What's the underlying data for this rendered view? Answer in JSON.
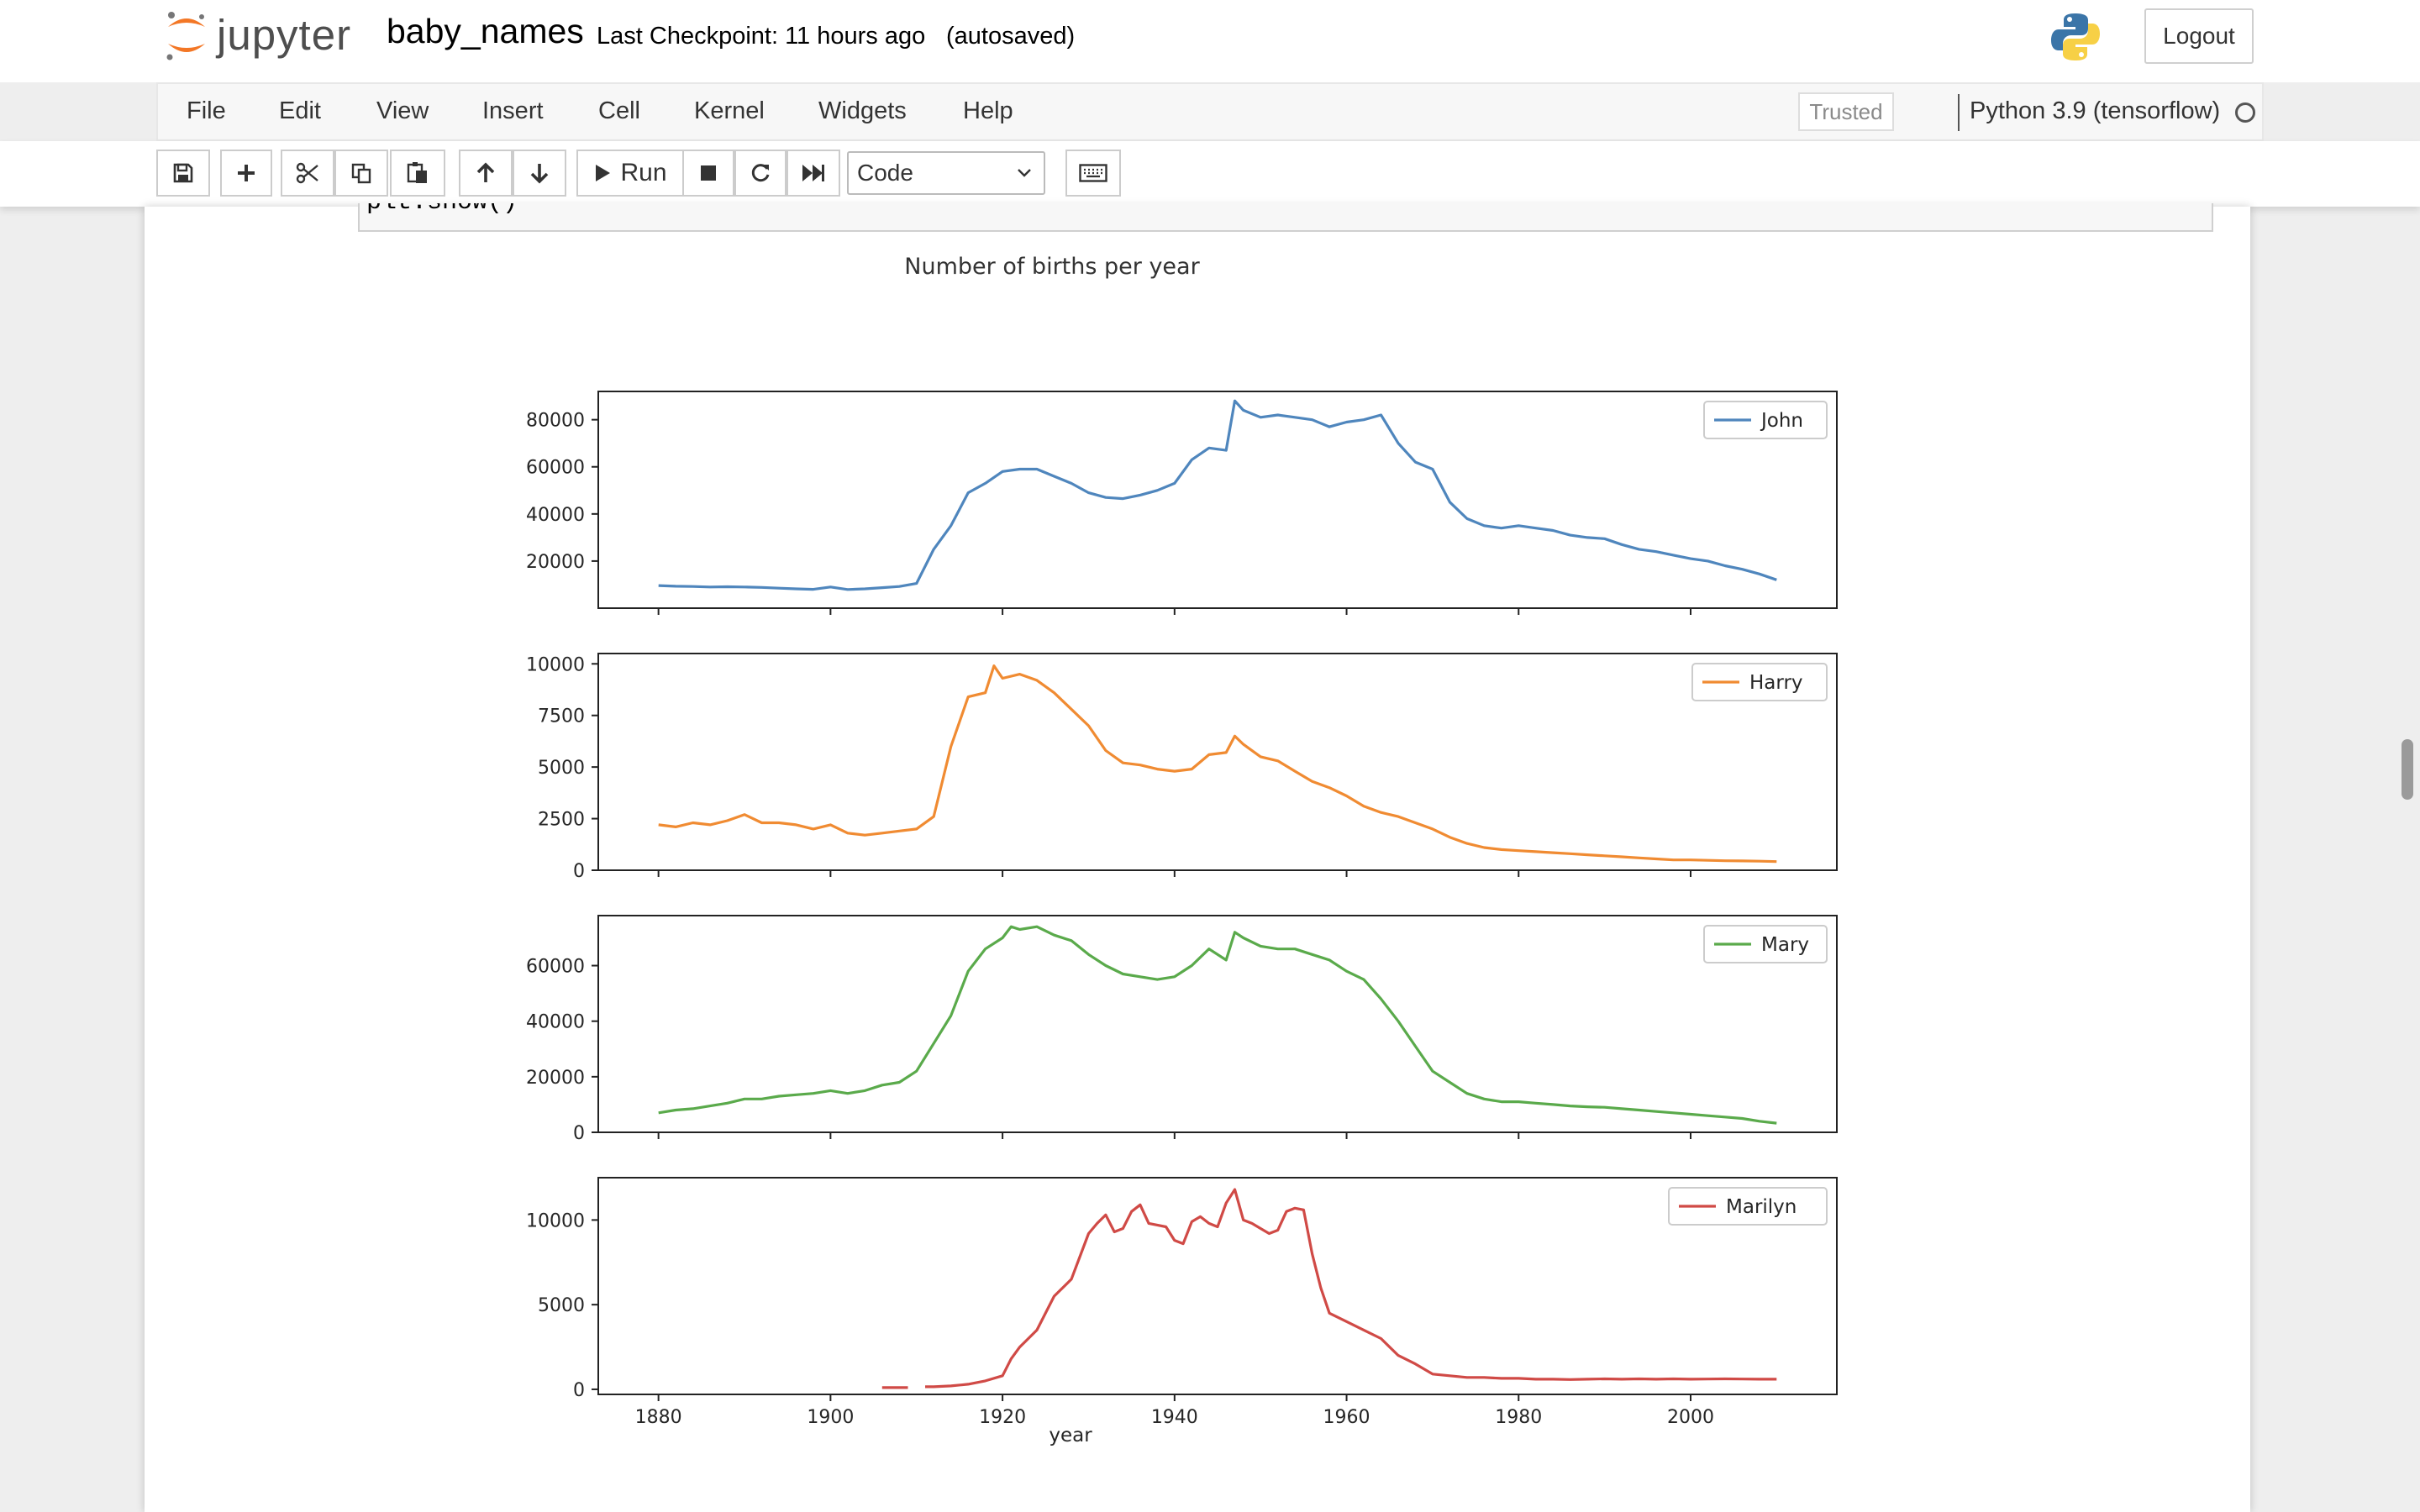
{
  "header": {
    "logo_text": "jupyter",
    "notebook_name": "baby_names",
    "checkpoint": "Last Checkpoint: 11 hours ago",
    "autosave": "(autosaved)",
    "logout_label": "Logout"
  },
  "menubar": {
    "items": [
      "File",
      "Edit",
      "View",
      "Insert",
      "Cell",
      "Kernel",
      "Widgets",
      "Help"
    ],
    "trusted_label": "Trusted",
    "kernel_name": "Python 3.9 (tensorflow)"
  },
  "toolbar": {
    "run_label": "Run",
    "cell_type": "Code",
    "icons": [
      "save-icon",
      "plus-icon",
      "cut-icon",
      "copy-icon",
      "paste-icon",
      "arrow-up-icon",
      "arrow-down-icon",
      "run-icon",
      "stop-icon",
      "restart-icon",
      "fast-forward-icon",
      "keyboard-icon"
    ]
  },
  "cell": {
    "code_tail": "plt.show()"
  },
  "colors": {
    "John": "#4f86bd",
    "Harry": "#f08b32",
    "Mary": "#5aaa4b",
    "Marilyn": "#d04a46"
  },
  "chart_data": {
    "type": "line",
    "title": "Number of births per year",
    "xlabel": "year",
    "xlim": [
      1873,
      2017
    ],
    "xticks": [
      1880,
      1900,
      1920,
      1940,
      1960,
      1980,
      2000
    ],
    "panels": [
      {
        "name": "John",
        "ylim": [
          0,
          92000
        ],
        "yticks": [
          20000,
          40000,
          60000,
          80000
        ],
        "x": [
          1880,
          1882,
          1884,
          1886,
          1888,
          1890,
          1892,
          1894,
          1896,
          1898,
          1900,
          1902,
          1904,
          1906,
          1908,
          1910,
          1912,
          1914,
          1916,
          1918,
          1920,
          1922,
          1924,
          1926,
          1928,
          1930,
          1932,
          1934,
          1936,
          1938,
          1940,
          1942,
          1944,
          1946,
          1947,
          1948,
          1950,
          1952,
          1954,
          1956,
          1958,
          1960,
          1962,
          1964,
          1966,
          1968,
          1970,
          1972,
          1974,
          1976,
          1978,
          1980,
          1982,
          1984,
          1986,
          1988,
          1990,
          1992,
          1994,
          1996,
          1998,
          2000,
          2002,
          2004,
          2006,
          2008,
          2010
        ],
        "values": [
          9600,
          9300,
          9200,
          9000,
          9100,
          9000,
          8800,
          8500,
          8200,
          8000,
          9000,
          7900,
          8200,
          8700,
          9200,
          10500,
          25000,
          35000,
          49000,
          53000,
          58000,
          59000,
          59000,
          56000,
          53000,
          49000,
          47000,
          46500,
          48000,
          50000,
          53000,
          63000,
          68000,
          67000,
          88000,
          84000,
          81000,
          82000,
          81000,
          80000,
          77000,
          79000,
          80000,
          82000,
          70000,
          62000,
          59000,
          45000,
          38000,
          35000,
          34000,
          35000,
          34000,
          33000,
          31000,
          30000,
          29500,
          27000,
          25000,
          24000,
          22500,
          21000,
          20000,
          18000,
          16500,
          14500,
          12000
        ]
      },
      {
        "name": "Harry",
        "ylim": [
          0,
          10500
        ],
        "yticks": [
          0,
          2500,
          5000,
          7500,
          10000
        ],
        "x": [
          1880,
          1882,
          1884,
          1886,
          1888,
          1890,
          1892,
          1894,
          1896,
          1898,
          1900,
          1902,
          1904,
          1906,
          1908,
          1910,
          1912,
          1914,
          1916,
          1918,
          1919,
          1920,
          1922,
          1924,
          1926,
          1928,
          1930,
          1932,
          1934,
          1936,
          1938,
          1940,
          1942,
          1944,
          1946,
          1947,
          1948,
          1950,
          1952,
          1954,
          1956,
          1958,
          1960,
          1962,
          1964,
          1966,
          1968,
          1970,
          1972,
          1974,
          1976,
          1978,
          1980,
          1982,
          1984,
          1986,
          1988,
          1990,
          1992,
          1994,
          1996,
          1998,
          2000,
          2002,
          2004,
          2006,
          2008,
          2010
        ],
        "values": [
          2200,
          2100,
          2300,
          2200,
          2400,
          2700,
          2300,
          2300,
          2200,
          2000,
          2200,
          1800,
          1700,
          1800,
          1900,
          2000,
          2600,
          6000,
          8400,
          8600,
          9900,
          9300,
          9500,
          9200,
          8600,
          7800,
          7000,
          5800,
          5200,
          5100,
          4900,
          4800,
          4900,
          5600,
          5700,
          6500,
          6100,
          5500,
          5300,
          4800,
          4300,
          4000,
          3600,
          3100,
          2800,
          2600,
          2300,
          2000,
          1600,
          1300,
          1100,
          1000,
          950,
          900,
          850,
          800,
          750,
          700,
          650,
          600,
          550,
          500,
          500,
          480,
          460,
          450,
          440,
          420
        ]
      },
      {
        "name": "Mary",
        "ylim": [
          0,
          78000
        ],
        "yticks": [
          0,
          20000,
          40000,
          60000
        ],
        "x": [
          1880,
          1882,
          1884,
          1886,
          1888,
          1890,
          1892,
          1894,
          1896,
          1898,
          1900,
          1902,
          1904,
          1906,
          1908,
          1910,
          1912,
          1914,
          1916,
          1918,
          1920,
          1921,
          1922,
          1924,
          1926,
          1928,
          1930,
          1932,
          1934,
          1936,
          1938,
          1940,
          1942,
          1944,
          1946,
          1947,
          1948,
          1950,
          1952,
          1954,
          1956,
          1958,
          1960,
          1962,
          1964,
          1966,
          1968,
          1970,
          1972,
          1974,
          1976,
          1978,
          1980,
          1982,
          1984,
          1986,
          1988,
          1990,
          1992,
          1994,
          1996,
          1998,
          2000,
          2002,
          2004,
          2006,
          2008,
          2010
        ],
        "values": [
          7000,
          8000,
          8500,
          9500,
          10500,
          12000,
          12000,
          13000,
          13500,
          14000,
          15000,
          14000,
          15000,
          17000,
          18000,
          22000,
          32000,
          42000,
          58000,
          66000,
          70000,
          74000,
          73000,
          74000,
          71000,
          69000,
          64000,
          60000,
          57000,
          56000,
          55000,
          56000,
          60000,
          66000,
          62000,
          72000,
          70000,
          67000,
          66000,
          66000,
          64000,
          62000,
          58000,
          55000,
          48000,
          40000,
          31000,
          22000,
          18000,
          14000,
          12000,
          11000,
          11000,
          10500,
          10000,
          9500,
          9200,
          9000,
          8500,
          8000,
          7500,
          7000,
          6500,
          6000,
          5500,
          5000,
          4000,
          3300
        ]
      },
      {
        "name": "Marilyn",
        "ylim": [
          -300,
          12500
        ],
        "yticks": [
          0,
          5000,
          10000
        ],
        "x": [
          1906,
          1907,
          1908,
          1909,
          null,
          1911,
          1912,
          1914,
          1916,
          1918,
          1920,
          1921,
          1922,
          1924,
          1926,
          1928,
          1930,
          1931,
          1932,
          1933,
          1934,
          1935,
          1936,
          1937,
          1938,
          1939,
          1940,
          1941,
          1942,
          1943,
          1944,
          1945,
          1946,
          1947,
          1948,
          1949,
          1950,
          1951,
          1952,
          1953,
          1954,
          1955,
          1956,
          1957,
          1958,
          1960,
          1962,
          1964,
          1966,
          1968,
          1970,
          1972,
          1974,
          1976,
          1978,
          1980,
          1982,
          1984,
          1986,
          1988,
          1990,
          1992,
          1994,
          1996,
          1998,
          2000,
          2002,
          2004,
          2006,
          2008,
          2010
        ],
        "values": [
          100,
          100,
          100,
          100,
          null,
          150,
          150,
          200,
          300,
          500,
          800,
          1800,
          2500,
          3500,
          5500,
          6500,
          9200,
          9800,
          10300,
          9300,
          9500,
          10500,
          10900,
          9800,
          9700,
          9600,
          8800,
          8600,
          9900,
          10200,
          9800,
          9600,
          11000,
          11800,
          10000,
          9800,
          9500,
          9200,
          9400,
          10500,
          10700,
          10600,
          8000,
          6000,
          4500,
          4000,
          3500,
          3000,
          2000,
          1500,
          900,
          800,
          700,
          700,
          650,
          650,
          600,
          600,
          580,
          600,
          620,
          600,
          620,
          600,
          620,
          600,
          610,
          620,
          610,
          600,
          600
        ]
      }
    ]
  }
}
